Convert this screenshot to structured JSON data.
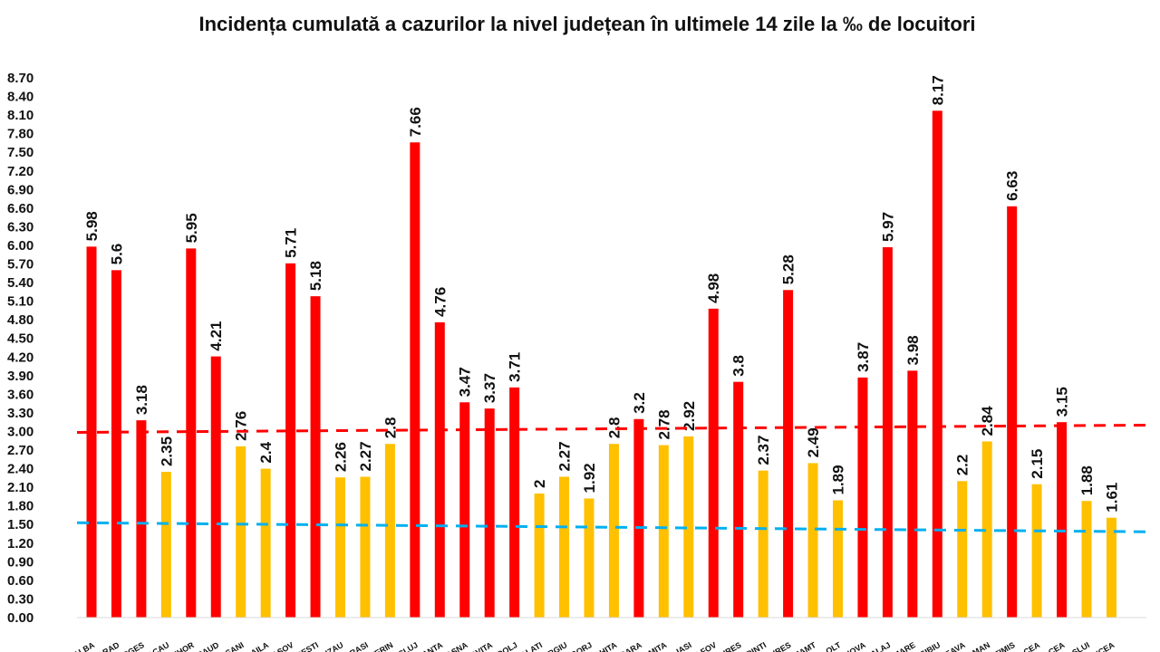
{
  "chart_data": {
    "type": "bar",
    "title": "Incidența cumulată a cazurilor la nivel județean în ultimele 14 zile la ‰ de locuitori",
    "xlabel": "",
    "ylabel": "",
    "ylim": [
      0,
      8.7
    ],
    "yticks": [
      "0.00",
      "0.30",
      "0.60",
      "0.90",
      "1.20",
      "1.50",
      "1.80",
      "2.10",
      "2.40",
      "2.70",
      "3.00",
      "3.30",
      "3.60",
      "3.90",
      "4.20",
      "4.50",
      "4.80",
      "5.10",
      "5.40",
      "5.70",
      "6.00",
      "6.30",
      "6.60",
      "6.90",
      "7.20",
      "7.50",
      "7.80",
      "8.10",
      "8.40",
      "8.70"
    ],
    "grid": false,
    "legend": "none",
    "categories": [
      "ALBA",
      "ARAD",
      "ARGES",
      "BACAU",
      "BIHOR",
      "BISTRITA NASAUD",
      "BOTOSANI",
      "BRAILA",
      "BRASOV",
      "BUCURESTI",
      "BUZAU",
      "CARAS SEVERIN",
      "CALARASI",
      "CLUJ",
      "CONSTANTA",
      "COVASNA",
      "DAMBOVITA",
      "DOLJ",
      "GALATI",
      "GIURGIU",
      "GORJ",
      "HARGHITA",
      "HUNEDOARA",
      "IALOMITA",
      "IASI",
      "ILFOV",
      "MARAMURES",
      "MEHEDINTI",
      "MURES",
      "NEAMT",
      "OLT",
      "PRAHOVA",
      "SALAJ",
      "SATU MARE",
      "SIBIU",
      "SUCEAVA",
      "TELEORMAN",
      "TIMIS",
      "TULCEA",
      "VALCEA",
      "VASLUI",
      "VRANCEA"
    ],
    "category_labels": [
      "ALBA",
      "ARAD",
      "ARGES",
      "BACAU",
      "BIHOR",
      "SAUD",
      "OSANI",
      "BRAILA",
      "RASOV",
      "URESTI",
      "BUZAU",
      "ARASI",
      "VERIN",
      "CLUJ",
      "STANTA",
      "VASNA",
      "OVITA",
      "DOLJ",
      "GALATI",
      "IURGIU",
      "GORJ",
      "RGHITA",
      "DOARA",
      "LOMITA",
      "IASI",
      "ILFOV",
      "MURES",
      "EDINTI",
      "MURES",
      "NEAMT",
      "OLT",
      "AHOVA",
      "SALAJ",
      "MARE",
      "SIBIU",
      "CEAVA",
      "ORMAN",
      "TIMIS",
      "ULCEA",
      "ALCEA",
      "VASLUI",
      "ANCEA"
    ],
    "values": [
      5.98,
      5.6,
      3.18,
      2.35,
      5.95,
      4.21,
      2.76,
      2.4,
      5.71,
      5.18,
      2.26,
      2.27,
      2.8,
      7.66,
      4.76,
      3.47,
      3.37,
      3.71,
      2,
      2.27,
      1.92,
      2.8,
      3.2,
      2.78,
      2.92,
      4.98,
      3.8,
      2.37,
      5.28,
      2.49,
      1.89,
      3.87,
      5.97,
      3.98,
      8.17,
      2.2,
      2.84,
      6.63,
      2.15,
      3.15,
      1.88,
      1.61
    ],
    "value_labels": [
      "5.98",
      "5.6",
      "3.18",
      "2.35",
      "5.95",
      "4.21",
      "2.76",
      "2.4",
      "5.71",
      "5.18",
      "2.26",
      "2.27",
      "2.8",
      "7.66",
      "4.76",
      "3.47",
      "3.37",
      "3.71",
      "2",
      "2.27",
      "1.92",
      "2.8",
      "3.2",
      "2.78",
      "2.92",
      "4.98",
      "3.8",
      "2.37",
      "5.28",
      "2.49",
      "1.89",
      "3.87",
      "5.97",
      "3.98",
      "8.17",
      "2.2",
      "2.84",
      "6.63",
      "2.15",
      "3.15",
      "1.88",
      "1.61"
    ],
    "bar_colors": {
      "above_3": "#ff0000",
      "between_1_5_and_3": "#ffc000"
    },
    "thresholds": [
      {
        "value": 3.0,
        "color": "#ff0000",
        "style": "dashed"
      },
      {
        "value": 1.5,
        "color": "#00b0f0",
        "style": "dashed"
      }
    ]
  }
}
